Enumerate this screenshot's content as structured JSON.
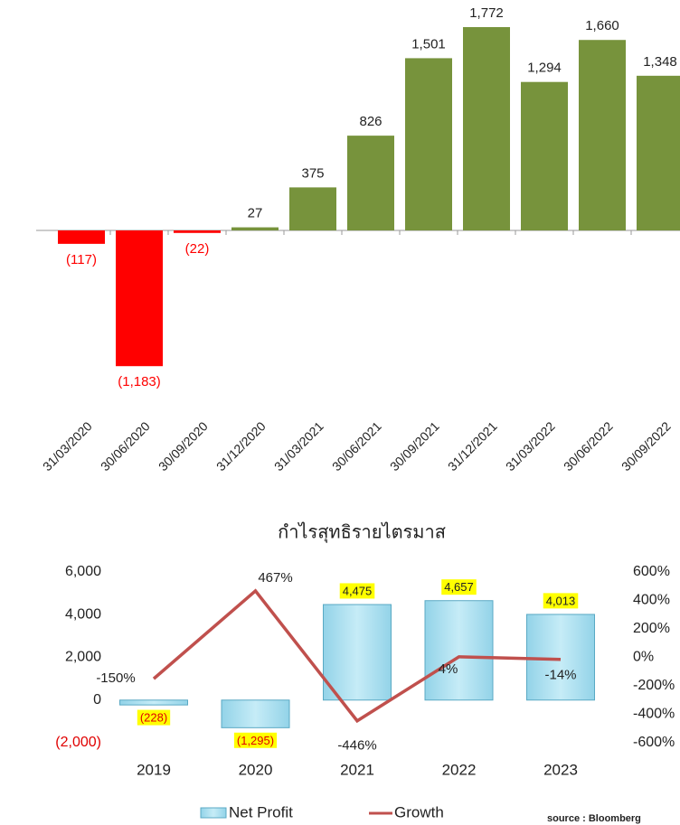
{
  "chart_data": [
    {
      "type": "bar",
      "categories": [
        "31/03/2020",
        "30/06/2020",
        "30/09/2020",
        "31/12/2020",
        "31/03/2021",
        "30/06/2021",
        "30/09/2021",
        "31/12/2021",
        "31/03/2022",
        "30/06/2022",
        "30/09/2022"
      ],
      "values": [
        -117,
        -1183,
        -22,
        27,
        375,
        826,
        1501,
        1772,
        1294,
        1660,
        1348
      ],
      "value_labels": [
        "(117)",
        "(1,183)",
        "(22)",
        "27",
        "375",
        "826",
        "1,501",
        "1,772",
        "1,294",
        "1,660",
        "1,348"
      ],
      "color": "#77933c",
      "negative_color": "#ff0000"
    },
    {
      "type": "bar_line",
      "title": "กำไรสุทธิรายไตรมาส",
      "categories": [
        "2019",
        "2020",
        "2021",
        "2022",
        "2023"
      ],
      "series": [
        {
          "name": "Net Profit",
          "type": "bar",
          "color": "#93d3e8",
          "values": [
            -228,
            -1295,
            4475,
            4657,
            4013
          ],
          "value_labels": [
            "(228)",
            "(1,295)",
            "4,475",
            "4,657",
            "4,013"
          ]
        },
        {
          "name": "Growth",
          "type": "line",
          "axis": "y2",
          "color": "#c0504d",
          "values": [
            -150,
            467,
            -446,
            4,
            -14
          ],
          "value_labels": [
            "-150%",
            "467%",
            "-446%",
            "4%",
            "-14%"
          ]
        }
      ],
      "ylim": [
        -2000,
        6000
      ],
      "yticks": [
        {
          "value": -2000,
          "label": "(2,000)"
        },
        0,
        {
          "value": 2000,
          "label": "2,000"
        },
        {
          "value": 4000,
          "label": "4,000"
        },
        {
          "value": 6000,
          "label": "6,000"
        }
      ],
      "y2lim": [
        -600,
        600
      ],
      "y2ticks": [
        {
          "value": -600,
          "label": "-600%"
        },
        {
          "value": -400,
          "label": "-400%"
        },
        {
          "value": -200,
          "label": "-200%"
        },
        {
          "value": 0,
          "label": "0%"
        },
        {
          "value": 200,
          "label": "200%"
        },
        {
          "value": 400,
          "label": "400%"
        },
        {
          "value": 600,
          "label": "600%"
        }
      ],
      "source": "source : Bloomberg"
    }
  ]
}
